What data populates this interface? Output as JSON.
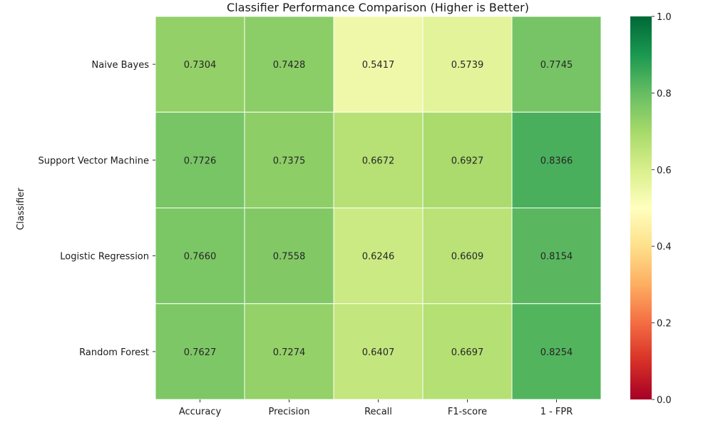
{
  "chart_data": {
    "type": "heatmap",
    "title": "Classifier Performance Comparison (Higher is Better)",
    "ylabel": "Classifier",
    "xlabel": "",
    "columns": [
      "Accuracy",
      "Precision",
      "Recall",
      "F1-score",
      "1 - FPR"
    ],
    "rows": [
      "Naive Bayes",
      "Support Vector Machine",
      "Logistic Regression",
      "Random Forest"
    ],
    "values": [
      [
        0.7304,
        0.7428,
        0.5417,
        0.5739,
        0.7745
      ],
      [
        0.7726,
        0.7375,
        0.6672,
        0.6927,
        0.8366
      ],
      [
        0.766,
        0.7558,
        0.6246,
        0.6609,
        0.8154
      ],
      [
        0.7627,
        0.7274,
        0.6407,
        0.6697,
        0.8254
      ]
    ],
    "value_labels": [
      [
        "0.7304",
        "0.7428",
        "0.5417",
        "0.5739",
        "0.7745"
      ],
      [
        "0.7726",
        "0.7375",
        "0.6672",
        "0.6927",
        "0.8366"
      ],
      [
        "0.7660",
        "0.7558",
        "0.6246",
        "0.6609",
        "0.8154"
      ],
      [
        "0.7627",
        "0.7274",
        "0.6407",
        "0.6697",
        "0.8254"
      ]
    ],
    "colormap": "RdYlGn",
    "vmin": 0.0,
    "vmax": 1.0,
    "colorbar_ticks": [
      "0.0",
      "0.2",
      "0.4",
      "0.6",
      "0.8",
      "1.0"
    ],
    "grid": true,
    "colorbar_placement": "right"
  }
}
